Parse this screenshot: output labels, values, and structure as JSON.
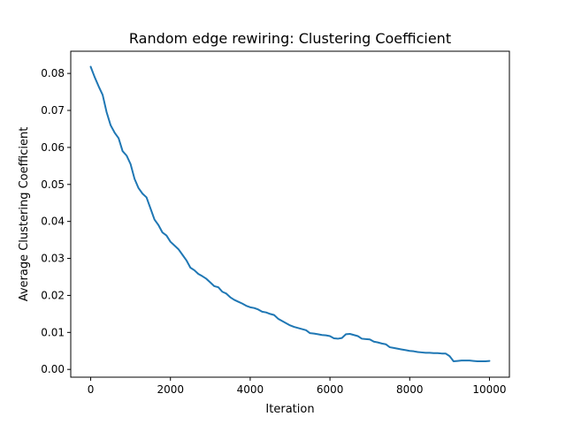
{
  "chart_data": {
    "type": "line",
    "title": "Random edge rewiring: Clustering Coefficient",
    "xlabel": "Iteration",
    "ylabel": "Average Clustering Coefficient",
    "xlim": [
      -500,
      10500
    ],
    "ylim": [
      -0.0021,
      0.086
    ],
    "xticks": [
      0,
      2000,
      4000,
      6000,
      8000,
      10000
    ],
    "yticks": [
      0.0,
      0.01,
      0.02,
      0.03,
      0.04,
      0.05,
      0.06,
      0.07,
      0.08
    ],
    "xtick_labels": [
      "0",
      "2000",
      "4000",
      "6000",
      "8000",
      "10000"
    ],
    "ytick_labels": [
      "0.00",
      "0.01",
      "0.02",
      "0.03",
      "0.04",
      "0.05",
      "0.06",
      "0.07",
      "0.08"
    ],
    "grid": false,
    "line_color": "#1f77b4",
    "series": [
      {
        "x": [
          0,
          100,
          200,
          300,
          400,
          500,
          600,
          700,
          800,
          900,
          1000,
          1100,
          1200,
          1300,
          1400,
          1500,
          1600,
          1700,
          1800,
          1900,
          2000,
          2100,
          2200,
          2300,
          2400,
          2500,
          2600,
          2700,
          2800,
          2900,
          3000,
          3100,
          3200,
          3300,
          3400,
          3500,
          3600,
          3700,
          3800,
          3900,
          4000,
          4100,
          4200,
          4300,
          4400,
          4500,
          4600,
          4700,
          4800,
          4900,
          5000,
          5100,
          5200,
          5300,
          5400,
          5500,
          5600,
          5700,
          5800,
          5900,
          6000,
          6100,
          6200,
          6300,
          6400,
          6500,
          6600,
          6700,
          6800,
          6900,
          7000,
          7100,
          7200,
          7300,
          7400,
          7500,
          7600,
          7700,
          7800,
          7900,
          8000,
          8100,
          8200,
          8300,
          8400,
          8500,
          8600,
          8700,
          8800,
          8900,
          9000,
          9100,
          9200,
          9300,
          9400,
          9500,
          9600,
          9700,
          9800,
          9900,
          10000
        ],
        "values": [
          0.0818,
          0.079,
          0.0765,
          0.0742,
          0.0695,
          0.066,
          0.064,
          0.0625,
          0.059,
          0.0578,
          0.0555,
          0.0515,
          0.049,
          0.0475,
          0.0465,
          0.0435,
          0.0405,
          0.039,
          0.037,
          0.0362,
          0.0345,
          0.0335,
          0.0325,
          0.031,
          0.0295,
          0.0275,
          0.0268,
          0.0258,
          0.0252,
          0.0245,
          0.0235,
          0.0225,
          0.0222,
          0.021,
          0.0205,
          0.0195,
          0.0188,
          0.0183,
          0.0178,
          0.0172,
          0.0168,
          0.0166,
          0.0162,
          0.0156,
          0.0154,
          0.015,
          0.0147,
          0.0137,
          0.0131,
          0.0125,
          0.0119,
          0.0115,
          0.0112,
          0.0109,
          0.0106,
          0.0098,
          0.0097,
          0.0095,
          0.0093,
          0.0092,
          0.009,
          0.0084,
          0.0083,
          0.0085,
          0.0095,
          0.0096,
          0.0093,
          0.009,
          0.0083,
          0.0082,
          0.0081,
          0.0075,
          0.0073,
          0.007,
          0.0068,
          0.006,
          0.0058,
          0.0056,
          0.0054,
          0.0052,
          0.005,
          0.0049,
          0.0047,
          0.0046,
          0.0045,
          0.0045,
          0.0044,
          0.0044,
          0.0043,
          0.0043,
          0.0036,
          0.0022,
          0.0023,
          0.0024,
          0.0024,
          0.0024,
          0.0023,
          0.0022,
          0.0022,
          0.0022,
          0.0023
        ]
      }
    ]
  }
}
